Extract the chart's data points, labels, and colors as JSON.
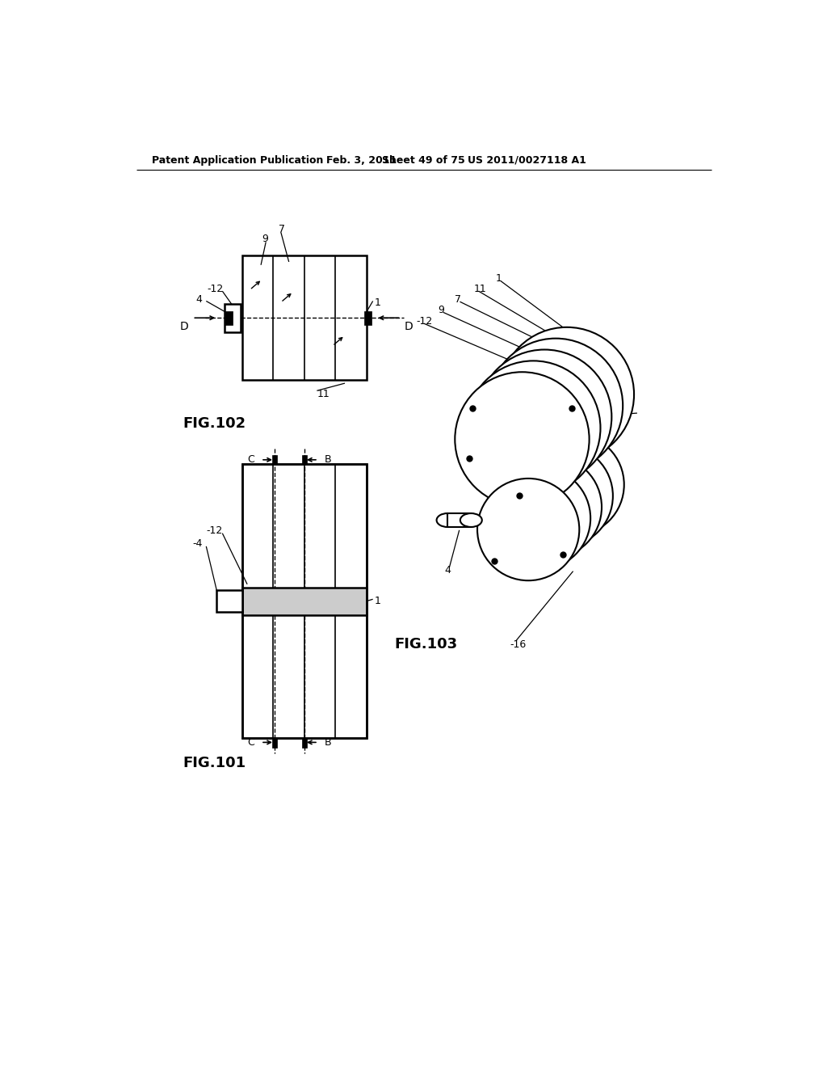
{
  "bg_color": "#ffffff",
  "header_text": "Patent Application Publication",
  "header_date": "Feb. 3, 2011",
  "header_sheet": "Sheet 49 of 75",
  "header_patent": "US 2011/0027118 A1",
  "fig101_label": "FIG.101",
  "fig102_label": "FIG.102",
  "fig103_label": "FIG.103"
}
